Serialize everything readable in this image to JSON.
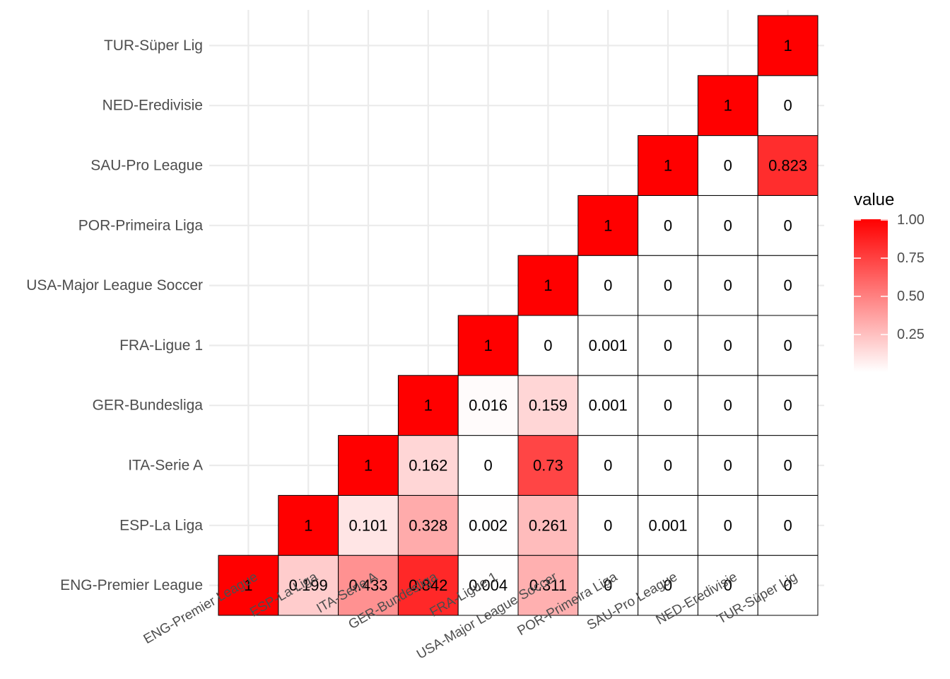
{
  "chart_data": {
    "type": "heatmap",
    "categories": [
      "ENG-Premier League",
      "ESP-La Liga",
      "ITA-Serie A",
      "GER-Bundesliga",
      "FRA-Ligue 1",
      "USA-Major League Soccer",
      "POR-Primeira Liga",
      "SAU-Pro League",
      "NED-Eredivisie",
      "TUR-Süper Lig"
    ],
    "matrix_rows_bottom_to_top": [
      [
        "1",
        "0.199",
        "0.433",
        "0.842",
        "0.004",
        "0.311",
        "0",
        "0",
        "0",
        "0"
      ],
      [
        null,
        "1",
        "0.101",
        "0.328",
        "0.002",
        "0.261",
        "0",
        "0.001",
        "0",
        "0"
      ],
      [
        null,
        null,
        "1",
        "0.162",
        "0",
        "0.73",
        "0",
        "0",
        "0",
        "0"
      ],
      [
        null,
        null,
        null,
        "1",
        "0.016",
        "0.159",
        "0.001",
        "0",
        "0",
        "0"
      ],
      [
        null,
        null,
        null,
        null,
        "1",
        "0",
        "0.001",
        "0",
        "0",
        "0"
      ],
      [
        null,
        null,
        null,
        null,
        null,
        "1",
        "0",
        "0",
        "0",
        "0"
      ],
      [
        null,
        null,
        null,
        null,
        null,
        null,
        "1",
        "0",
        "0",
        "0"
      ],
      [
        null,
        null,
        null,
        null,
        null,
        null,
        null,
        "1",
        "0",
        "0.823"
      ],
      [
        null,
        null,
        null,
        null,
        null,
        null,
        null,
        null,
        "1",
        "0"
      ],
      [
        null,
        null,
        null,
        null,
        null,
        null,
        null,
        null,
        null,
        "1"
      ]
    ],
    "legend": {
      "title": "value",
      "ticks": [
        "1.00",
        "0.75",
        "0.50",
        "0.25"
      ],
      "tick_values": [
        1.0,
        0.75,
        0.5,
        0.25
      ],
      "position": "right"
    },
    "colors": {
      "low": "#ffffff",
      "high": "#ff0000"
    },
    "grid": true
  }
}
